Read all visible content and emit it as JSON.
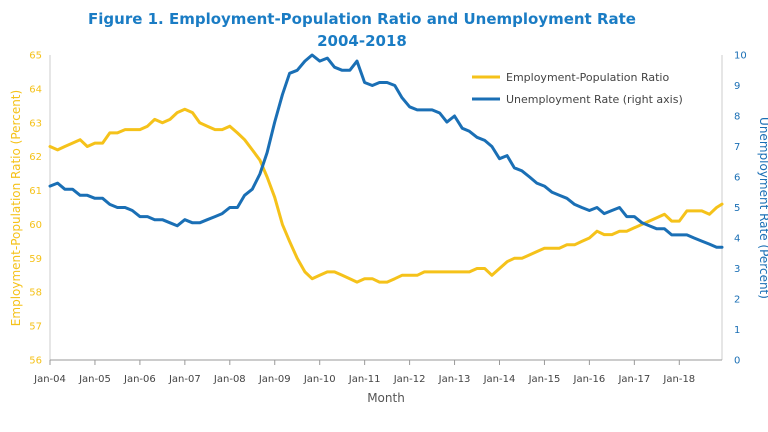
{
  "chart_data": {
    "type": "line",
    "title": "Figure 1. Employment-Population Ratio and Unemployment Rate",
    "subtitle": "2004-2018",
    "xlabel": "Month",
    "ylabel_left": "Employment-Population Ratio (Percent)",
    "ylabel_right": "Unemployment Rate (Percent)",
    "ylim_left": [
      56,
      65
    ],
    "ylim_right": [
      0,
      10
    ],
    "yticks_left": [
      "56",
      "57",
      "58",
      "59",
      "60",
      "61",
      "62",
      "63",
      "64",
      "65"
    ],
    "yticks_right": [
      "0",
      "1",
      "2",
      "3",
      "4",
      "5",
      "6",
      "7",
      "8",
      "9",
      "10"
    ],
    "xticks": [
      "Jan-04",
      "Jan-05",
      "Jan-06",
      "Jan-07",
      "Jan-08",
      "Jan-09",
      "Jan-10",
      "Jan-11",
      "Jan-12",
      "Jan-13",
      "Jan-14",
      "Jan-15",
      "Jan-16",
      "Jan-17",
      "Jan-18"
    ],
    "x_range_years": [
      2004,
      2018.95
    ],
    "grid": false,
    "legend_position": "top-right",
    "colors": {
      "title": "#1a7cc4",
      "employment": "#f5c21a",
      "unemployment": "#1a6fb5"
    },
    "series": [
      {
        "name": "Employment-Population Ratio",
        "axis": "left",
        "x": [
          2004.0,
          2004.17,
          2004.33,
          2004.5,
          2004.67,
          2004.83,
          2005.0,
          2005.17,
          2005.33,
          2005.5,
          2005.67,
          2005.83,
          2006.0,
          2006.17,
          2006.33,
          2006.5,
          2006.67,
          2006.83,
          2007.0,
          2007.17,
          2007.33,
          2007.5,
          2007.67,
          2007.83,
          2008.0,
          2008.17,
          2008.33,
          2008.5,
          2008.67,
          2008.83,
          2009.0,
          2009.17,
          2009.33,
          2009.5,
          2009.67,
          2009.83,
          2010.0,
          2010.17,
          2010.33,
          2010.5,
          2010.67,
          2010.83,
          2011.0,
          2011.17,
          2011.33,
          2011.5,
          2011.67,
          2011.83,
          2012.0,
          2012.17,
          2012.33,
          2012.5,
          2012.67,
          2012.83,
          2013.0,
          2013.17,
          2013.33,
          2013.5,
          2013.67,
          2013.83,
          2014.0,
          2014.17,
          2014.33,
          2014.5,
          2014.67,
          2014.83,
          2015.0,
          2015.17,
          2015.33,
          2015.5,
          2015.67,
          2015.83,
          2016.0,
          2016.17,
          2016.33,
          2016.5,
          2016.67,
          2016.83,
          2017.0,
          2017.17,
          2017.33,
          2017.5,
          2017.67,
          2017.83,
          2018.0,
          2018.17,
          2018.33,
          2018.5,
          2018.67,
          2018.83,
          2018.95
        ],
        "values": [
          62.3,
          62.2,
          62.3,
          62.4,
          62.5,
          62.3,
          62.4,
          62.4,
          62.7,
          62.7,
          62.8,
          62.8,
          62.8,
          62.9,
          63.1,
          63.0,
          63.1,
          63.3,
          63.4,
          63.3,
          63.0,
          62.9,
          62.8,
          62.8,
          62.9,
          62.7,
          62.5,
          62.2,
          61.9,
          61.4,
          60.8,
          60.0,
          59.5,
          59.0,
          58.6,
          58.4,
          58.5,
          58.6,
          58.6,
          58.5,
          58.4,
          58.3,
          58.4,
          58.4,
          58.3,
          58.3,
          58.4,
          58.5,
          58.5,
          58.5,
          58.6,
          58.6,
          58.6,
          58.6,
          58.6,
          58.6,
          58.6,
          58.7,
          58.7,
          58.5,
          58.7,
          58.9,
          59.0,
          59.0,
          59.1,
          59.2,
          59.3,
          59.3,
          59.3,
          59.4,
          59.4,
          59.5,
          59.6,
          59.8,
          59.7,
          59.7,
          59.8,
          59.8,
          59.9,
          60.0,
          60.1,
          60.2,
          60.3,
          60.1,
          60.1,
          60.4,
          60.4,
          60.4,
          60.3,
          60.5,
          60.6
        ]
      },
      {
        "name": "Unemployment Rate (right axis)",
        "axis": "right",
        "x": [
          2004.0,
          2004.17,
          2004.33,
          2004.5,
          2004.67,
          2004.83,
          2005.0,
          2005.17,
          2005.33,
          2005.5,
          2005.67,
          2005.83,
          2006.0,
          2006.17,
          2006.33,
          2006.5,
          2006.67,
          2006.83,
          2007.0,
          2007.17,
          2007.33,
          2007.5,
          2007.67,
          2007.83,
          2008.0,
          2008.17,
          2008.33,
          2008.5,
          2008.67,
          2008.83,
          2009.0,
          2009.17,
          2009.33,
          2009.5,
          2009.67,
          2009.83,
          2010.0,
          2010.17,
          2010.33,
          2010.5,
          2010.67,
          2010.83,
          2011.0,
          2011.17,
          2011.33,
          2011.5,
          2011.67,
          2011.83,
          2012.0,
          2012.17,
          2012.33,
          2012.5,
          2012.67,
          2012.83,
          2013.0,
          2013.17,
          2013.33,
          2013.5,
          2013.67,
          2013.83,
          2014.0,
          2014.17,
          2014.33,
          2014.5,
          2014.67,
          2014.83,
          2015.0,
          2015.17,
          2015.33,
          2015.5,
          2015.67,
          2015.83,
          2016.0,
          2016.17,
          2016.33,
          2016.5,
          2016.67,
          2016.83,
          2017.0,
          2017.17,
          2017.33,
          2017.5,
          2017.67,
          2017.83,
          2018.0,
          2018.17,
          2018.33,
          2018.5,
          2018.67,
          2018.83,
          2018.95
        ],
        "values": [
          5.7,
          5.8,
          5.6,
          5.6,
          5.4,
          5.4,
          5.3,
          5.3,
          5.1,
          5.0,
          5.0,
          4.9,
          4.7,
          4.7,
          4.6,
          4.6,
          4.5,
          4.4,
          4.6,
          4.5,
          4.5,
          4.6,
          4.7,
          4.8,
          5.0,
          5.0,
          5.4,
          5.6,
          6.1,
          6.8,
          7.8,
          8.7,
          9.4,
          9.5,
          9.8,
          10.0,
          9.8,
          9.9,
          9.6,
          9.5,
          9.5,
          9.8,
          9.1,
          9.0,
          9.1,
          9.1,
          9.0,
          8.6,
          8.3,
          8.2,
          8.2,
          8.2,
          8.1,
          7.8,
          8.0,
          7.6,
          7.5,
          7.3,
          7.2,
          7.0,
          6.6,
          6.7,
          6.3,
          6.2,
          6.0,
          5.8,
          5.7,
          5.5,
          5.4,
          5.3,
          5.1,
          5.0,
          4.9,
          5.0,
          4.8,
          4.9,
          5.0,
          4.7,
          4.7,
          4.5,
          4.4,
          4.3,
          4.3,
          4.1,
          4.1,
          4.1,
          4.0,
          3.9,
          3.8,
          3.7,
          3.7
        ]
      }
    ]
  }
}
